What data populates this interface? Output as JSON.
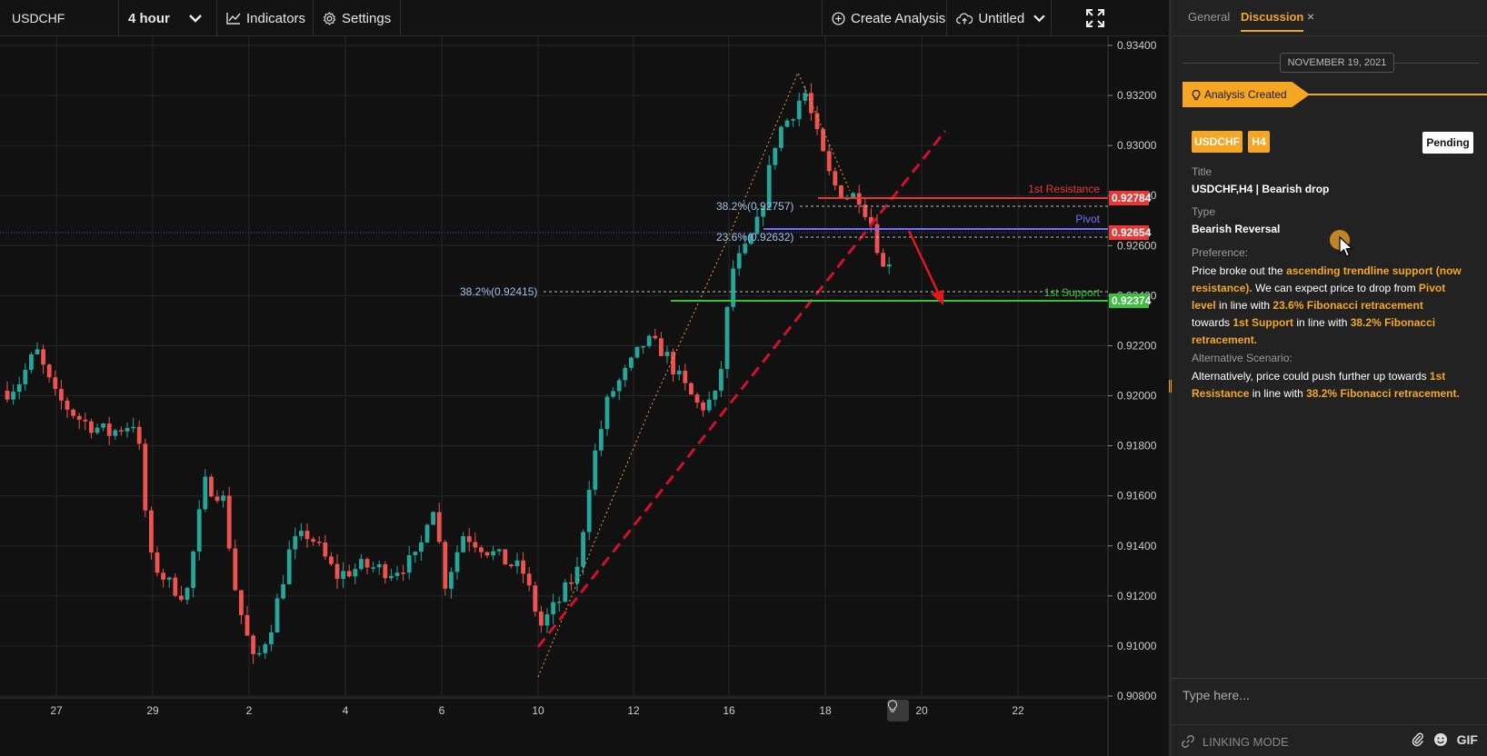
{
  "toolbar": {
    "symbol": "USDCHF",
    "interval": "4 hour",
    "indicators_label": "Indicators",
    "settings_label": "Settings",
    "create_label": "Create Analysis",
    "layout_name": "Untitled"
  },
  "chart": {
    "price_axis": [
      "0.93400",
      "0.93200",
      "0.93000",
      "0.92800",
      "0.92600",
      "0.92400",
      "0.92200",
      "0.92000",
      "0.91800",
      "0.91600",
      "0.91400",
      "0.91200",
      "0.91000",
      "0.90800"
    ],
    "date_axis": [
      "27",
      "29",
      "2",
      "4",
      "6",
      "10",
      "12",
      "16",
      "18",
      "20",
      "22"
    ],
    "lines": {
      "resistance_label": "1st Resistance",
      "resistance_price": "0.92784",
      "pivot_label": "Pivot",
      "pivot_price": "0.92654",
      "support_label": "1st Support",
      "support_price": "0.92374"
    },
    "fib_labels": {
      "upper_382": "38.2%(0.92757)",
      "upper_236": "23.6%(0.92632)",
      "lower_382": "38.2%(0.92415)"
    },
    "colors": {
      "bull": "#26a69a",
      "bear": "#ef5350",
      "resistance": "#e53935",
      "pivot": "#6f6fff",
      "support": "#3cbf3c",
      "trendline": "#d0112b"
    }
  },
  "panel": {
    "tabs": {
      "general": "General",
      "discussion": "Discussion",
      "close": "×"
    },
    "date": "NOVEMBER 19, 2021",
    "created_label": "Analysis Created",
    "badge_symbol": "USDCHF",
    "badge_timeframe": "H4",
    "status": "Pending",
    "title_label": "Title",
    "title_value": "USDCHF,H4 | Bearish drop",
    "type_label": "Type",
    "type_value": "Bearish Reversal",
    "preference_label": "Preference:",
    "preference": {
      "p1": "Price broke out the ",
      "h1": "ascending trendline support (now resistance).",
      "p2": " We can expect price to drop from ",
      "h2": "Pivot level",
      "p3": " in line with ",
      "h3": "23.6% Fibonacci retracement",
      "p4": " towards ",
      "h4": "1st Support",
      "p5": " in line with ",
      "h5": "38.2% Fibonacci retracement."
    },
    "alt_label": "Alternative Scenario:",
    "alt": {
      "p1": "Alternatively, price could push further up towards ",
      "h1": "1st Resistance",
      "p2": " in line with ",
      "h2": "38.2% Fibonacci retracement."
    },
    "input_placeholder": "Type here...",
    "linking_label": "LINKING MODE",
    "gif_label": "GIF"
  }
}
